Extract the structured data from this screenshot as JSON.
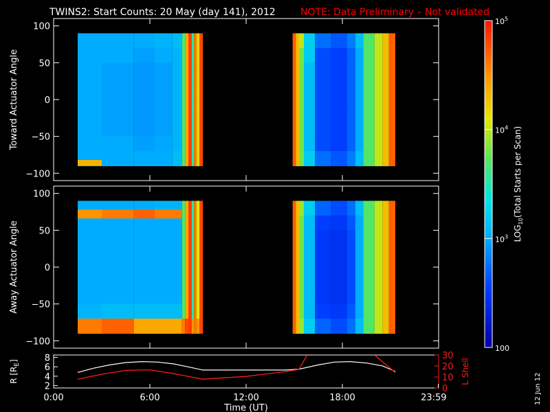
{
  "title": {
    "main": "TWINS2: Start Counts: 20 May (day 141), 2012",
    "note": "NOTE: Data Preliminary – Not validated"
  },
  "colors": {
    "background": "#000000",
    "axes": "#ffffff",
    "note": "#ff0000",
    "r_line": "#ffffff",
    "lshell_line": "#ff1a1a"
  },
  "chart_data": [
    {
      "type": "heatmap",
      "name": "toward",
      "ylabel": "Toward Actuator Angle",
      "xlim": [
        0,
        24
      ],
      "ylim": [
        -110,
        110
      ],
      "yticks": [
        100,
        50,
        0,
        -50,
        -100
      ],
      "ytick_labels": [
        "100",
        "50",
        "0",
        "−50",
        "−100"
      ],
      "colorscale": "log10",
      "data_extent_y": [
        -90,
        90
      ],
      "columns": [
        {
          "t0": 1.5,
          "t1": 3.0,
          "logc": [
            3.0,
            3.0,
            3.0,
            3.0,
            3.0,
            3.0,
            3.0,
            3.0,
            3.0
          ],
          "edge_top": 3.05,
          "edge_bottom": 4.35
        },
        {
          "t0": 3.0,
          "t1": 5.0,
          "logc": [
            3.0,
            3.0,
            2.95,
            2.95,
            2.95,
            2.95,
            2.95,
            3.0,
            3.0
          ]
        },
        {
          "t0": 5.0,
          "t1": 6.3,
          "logc": [
            3.0,
            2.95,
            2.92,
            2.92,
            2.92,
            2.92,
            2.92,
            2.95,
            3.0
          ]
        },
        {
          "t0": 6.3,
          "t1": 7.4,
          "logc": [
            3.05,
            3.0,
            2.95,
            2.95,
            2.95,
            2.95,
            2.95,
            2.98,
            3.0
          ]
        },
        {
          "t0": 7.4,
          "t1": 8.0,
          "logc": [
            3.1,
            3.05,
            3.05,
            3.05,
            3.05,
            3.05,
            3.05,
            3.05,
            3.1
          ]
        },
        {
          "t0": 8.0,
          "t1": 8.2,
          "logc": [
            3.7,
            3.7,
            3.7,
            3.7,
            3.7,
            3.7,
            3.7,
            3.7,
            3.7
          ]
        },
        {
          "t0": 8.2,
          "t1": 8.4,
          "logc": [
            4.4,
            4.4,
            4.4,
            4.4,
            4.4,
            4.4,
            4.4,
            4.4,
            4.4
          ]
        },
        {
          "t0": 8.4,
          "t1": 8.6,
          "logc": [
            4.85,
            4.85,
            4.85,
            4.85,
            4.85,
            4.85,
            4.85,
            4.85,
            4.85
          ]
        },
        {
          "t0": 8.6,
          "t1": 8.75,
          "logc": [
            3.5,
            3.5,
            3.5,
            3.5,
            3.5,
            3.5,
            3.5,
            3.5,
            3.5
          ]
        },
        {
          "t0": 8.75,
          "t1": 8.9,
          "logc": [
            4.6,
            4.6,
            4.6,
            4.6,
            4.6,
            4.6,
            4.6,
            4.6,
            4.6
          ]
        },
        {
          "t0": 8.9,
          "t1": 9.1,
          "logc": [
            4.2,
            4.2,
            4.2,
            4.2,
            4.2,
            4.2,
            4.2,
            4.2,
            4.2
          ]
        },
        {
          "t0": 9.1,
          "t1": 9.3,
          "logc": [
            4.8,
            4.8,
            4.8,
            4.8,
            4.8,
            4.8,
            4.8,
            4.8,
            4.8
          ]
        },
        {
          "t0": 14.9,
          "t1": 15.1,
          "logc": [
            4.7,
            4.7,
            4.7,
            4.7,
            4.7,
            4.7,
            4.7,
            4.7,
            4.7
          ]
        },
        {
          "t0": 15.1,
          "t1": 15.3,
          "logc": [
            4.3,
            4.3,
            4.3,
            4.3,
            4.3,
            4.3,
            4.3,
            4.3,
            4.3
          ]
        },
        {
          "t0": 15.3,
          "t1": 15.6,
          "logc": [
            4.0,
            3.8,
            3.8,
            3.8,
            3.8,
            3.8,
            3.8,
            3.8,
            3.8
          ]
        },
        {
          "t0": 15.6,
          "t1": 16.3,
          "logc": [
            3.2,
            3.2,
            3.1,
            3.1,
            3.1,
            3.1,
            3.1,
            3.1,
            3.2
          ]
        },
        {
          "t0": 16.3,
          "t1": 17.3,
          "logc": [
            2.75,
            2.6,
            2.6,
            2.6,
            2.6,
            2.6,
            2.6,
            2.6,
            2.75
          ]
        },
        {
          "t0": 17.3,
          "t1": 18.3,
          "logc": [
            2.65,
            2.55,
            2.55,
            2.55,
            2.55,
            2.55,
            2.55,
            2.55,
            2.65
          ]
        },
        {
          "t0": 18.3,
          "t1": 18.8,
          "logc": [
            2.8,
            2.7,
            2.7,
            2.7,
            2.7,
            2.7,
            2.7,
            2.7,
            2.8
          ]
        },
        {
          "t0": 18.8,
          "t1": 19.3,
          "logc": [
            3.1,
            3.0,
            3.0,
            3.0,
            3.0,
            3.0,
            3.0,
            3.0,
            3.1
          ]
        },
        {
          "t0": 19.3,
          "t1": 20.0,
          "logc": [
            3.7,
            3.7,
            3.7,
            3.7,
            3.7,
            3.7,
            3.7,
            3.7,
            3.7
          ]
        },
        {
          "t0": 20.0,
          "t1": 20.5,
          "logc": [
            4.0,
            4.0,
            4.0,
            4.0,
            4.0,
            4.0,
            4.0,
            4.0,
            4.0
          ]
        },
        {
          "t0": 20.5,
          "t1": 20.9,
          "logc": [
            4.3,
            4.3,
            4.3,
            4.3,
            4.3,
            4.3,
            4.3,
            4.3,
            4.3
          ]
        },
        {
          "t0": 20.9,
          "t1": 21.3,
          "logc": [
            4.7,
            4.7,
            4.7,
            4.7,
            4.7,
            4.7,
            4.7,
            4.7,
            4.7
          ]
        }
      ]
    },
    {
      "type": "heatmap",
      "name": "away",
      "ylabel": "Away Actuator Angle",
      "xlim": [
        0,
        24
      ],
      "ylim": [
        -110,
        110
      ],
      "yticks": [
        100,
        50,
        0,
        -50,
        -100
      ],
      "ytick_labels": [
        "100",
        "50",
        "0",
        "−50",
        "−100"
      ],
      "colorscale": "log10",
      "data_extent_y": [
        -90,
        90
      ],
      "columns": [
        {
          "t0": 1.5,
          "t1": 3.0,
          "logc": [
            3.0,
            3.0,
            3.0,
            3.0,
            3.0,
            3.0,
            3.0,
            3.05,
            4.6
          ],
          "band_70": 4.5
        },
        {
          "t0": 3.0,
          "t1": 5.0,
          "logc": [
            3.0,
            3.0,
            3.0,
            3.0,
            3.0,
            3.0,
            3.0,
            3.1,
            4.7
          ],
          "band_70": 4.6
        },
        {
          "t0": 5.0,
          "t1": 6.3,
          "logc": [
            3.0,
            3.0,
            3.0,
            3.0,
            3.0,
            3.0,
            3.0,
            3.1,
            4.4
          ],
          "band_70": 4.7
        },
        {
          "t0": 6.3,
          "t1": 8.0,
          "logc": [
            3.05,
            3.0,
            3.0,
            3.0,
            3.0,
            3.0,
            3.0,
            3.1,
            4.4
          ],
          "band_70": 4.6
        },
        {
          "t0": 8.0,
          "t1": 8.2,
          "logc": [
            3.7,
            3.7,
            3.7,
            3.7,
            3.7,
            3.7,
            3.7,
            3.7,
            4.6
          ]
        },
        {
          "t0": 8.2,
          "t1": 8.4,
          "logc": [
            4.4,
            4.4,
            4.4,
            4.4,
            4.4,
            4.4,
            4.4,
            4.4,
            4.8
          ]
        },
        {
          "t0": 8.4,
          "t1": 8.6,
          "logc": [
            4.85,
            4.85,
            4.85,
            4.85,
            4.85,
            4.85,
            4.85,
            4.85,
            4.85
          ]
        },
        {
          "t0": 8.6,
          "t1": 8.75,
          "logc": [
            3.5,
            3.5,
            3.5,
            3.5,
            3.5,
            3.5,
            3.5,
            3.5,
            4.5
          ]
        },
        {
          "t0": 8.75,
          "t1": 8.9,
          "logc": [
            4.6,
            4.6,
            4.6,
            4.6,
            4.6,
            4.6,
            4.6,
            4.6,
            4.6
          ]
        },
        {
          "t0": 8.9,
          "t1": 9.1,
          "logc": [
            4.1,
            4.1,
            4.1,
            4.1,
            4.1,
            4.1,
            4.1,
            4.1,
            4.5
          ]
        },
        {
          "t0": 9.1,
          "t1": 9.3,
          "logc": [
            4.8,
            4.8,
            4.8,
            4.8,
            4.8,
            4.8,
            4.8,
            4.8,
            4.8
          ]
        },
        {
          "t0": 14.9,
          "t1": 15.1,
          "logc": [
            4.7,
            4.7,
            4.7,
            4.7,
            4.7,
            4.7,
            4.7,
            4.7,
            4.7
          ]
        },
        {
          "t0": 15.1,
          "t1": 15.3,
          "logc": [
            4.3,
            4.3,
            4.3,
            4.3,
            4.3,
            4.3,
            4.3,
            4.3,
            4.3
          ]
        },
        {
          "t0": 15.3,
          "t1": 15.6,
          "logc": [
            3.9,
            3.8,
            3.8,
            3.8,
            3.8,
            3.8,
            3.8,
            3.8,
            3.9
          ]
        },
        {
          "t0": 15.6,
          "t1": 16.3,
          "logc": [
            3.2,
            3.1,
            3.1,
            3.1,
            3.1,
            3.1,
            3.1,
            3.1,
            3.2
          ]
        },
        {
          "t0": 16.3,
          "t1": 17.3,
          "logc": [
            2.7,
            2.55,
            2.5,
            2.5,
            2.5,
            2.5,
            2.5,
            2.55,
            2.7
          ]
        },
        {
          "t0": 17.3,
          "t1": 18.3,
          "logc": [
            2.6,
            2.5,
            2.45,
            2.45,
            2.45,
            2.45,
            2.45,
            2.5,
            2.6
          ]
        },
        {
          "t0": 18.3,
          "t1": 18.8,
          "logc": [
            2.75,
            2.65,
            2.6,
            2.6,
            2.6,
            2.6,
            2.6,
            2.65,
            2.75
          ]
        },
        {
          "t0": 18.8,
          "t1": 19.3,
          "logc": [
            3.1,
            3.0,
            3.0,
            3.0,
            3.0,
            3.0,
            3.0,
            3.0,
            3.1
          ]
        },
        {
          "t0": 19.3,
          "t1": 20.0,
          "logc": [
            3.7,
            3.7,
            3.7,
            3.7,
            3.7,
            3.7,
            3.7,
            3.7,
            3.7
          ]
        },
        {
          "t0": 20.0,
          "t1": 20.5,
          "logc": [
            4.0,
            4.0,
            4.0,
            4.0,
            4.0,
            4.0,
            4.0,
            4.0,
            4.0
          ]
        },
        {
          "t0": 20.5,
          "t1": 20.9,
          "logc": [
            4.3,
            4.3,
            4.3,
            4.3,
            4.3,
            4.3,
            4.3,
            4.3,
            4.3
          ]
        },
        {
          "t0": 20.9,
          "t1": 21.3,
          "logc": [
            4.7,
            4.7,
            4.7,
            4.7,
            4.7,
            4.7,
            4.7,
            4.7,
            4.7
          ]
        }
      ]
    },
    {
      "type": "line",
      "name": "ephemeris",
      "xlabel": "Time (UT)",
      "xlim": [
        0,
        24
      ],
      "xticks": [
        0,
        6,
        12,
        18,
        23.98
      ],
      "xtick_labels": [
        "0:00",
        "6:00",
        "12:00",
        "18:00",
        "23:59"
      ],
      "ylabel": "R [R",
      "ylabel_sub": "E",
      "ylabel_close": "]",
      "ylim": [
        1.5,
        8.5
      ],
      "yticks": [
        2,
        4,
        6,
        8
      ],
      "ytick_labels": [
        "2",
        "4",
        "6",
        "8"
      ],
      "y2label": "L Shell",
      "y2lim": [
        0,
        30
      ],
      "y2ticks": [
        0,
        10,
        20,
        30
      ],
      "y2tick_labels": [
        "0",
        "10",
        "20",
        "30"
      ],
      "series": [
        {
          "axis": "left",
          "x": [
            1.5,
            2.5,
            3.5,
            4.5,
            5.5,
            6.5,
            7.5,
            8.5,
            9.3,
            12.0,
            14.5,
            15.3,
            16.5,
            17.5,
            18.5,
            19.5,
            20.5,
            21.3
          ],
          "y": [
            4.8,
            5.7,
            6.4,
            6.9,
            7.1,
            7.0,
            6.6,
            5.9,
            5.3,
            5.3,
            5.3,
            5.5,
            6.4,
            7.0,
            7.1,
            6.8,
            6.2,
            5.0
          ]
        },
        {
          "axis": "right",
          "segments": [
            {
              "x": [
                1.5,
                3.0,
                4.5,
                6.0,
                7.5,
                9.3
              ],
              "y": [
                8.0,
                12.5,
                16.0,
                16.5,
                13.0,
                8.0
              ]
            },
            {
              "x": [
                9.3,
                12.0,
                14.5,
                15.3
              ],
              "y": [
                8.0,
                10.5,
                15.0,
                17.0
              ]
            },
            {
              "x": [
                15.3,
                15.8
              ],
              "y": [
                17.0,
                30.0
              ]
            },
            {
              "x": [
                20.0,
                21.3
              ],
              "y": [
                30.0,
                14.0
              ]
            }
          ]
        }
      ]
    }
  ],
  "colorbar": {
    "min": 2,
    "max": 5,
    "ticks": [
      {
        "value": 5,
        "base": "10",
        "exp": "5"
      },
      {
        "value": 4,
        "base": "10",
        "exp": "4"
      },
      {
        "value": 3,
        "base": "10",
        "exp": "3"
      },
      {
        "value": 2,
        "base": "100",
        "exp": ""
      }
    ],
    "label_pre": "LOG",
    "label_sub": "10",
    "label_post": "(Total Starts per Scan)"
  },
  "date_stamp": "12 Jun 12"
}
